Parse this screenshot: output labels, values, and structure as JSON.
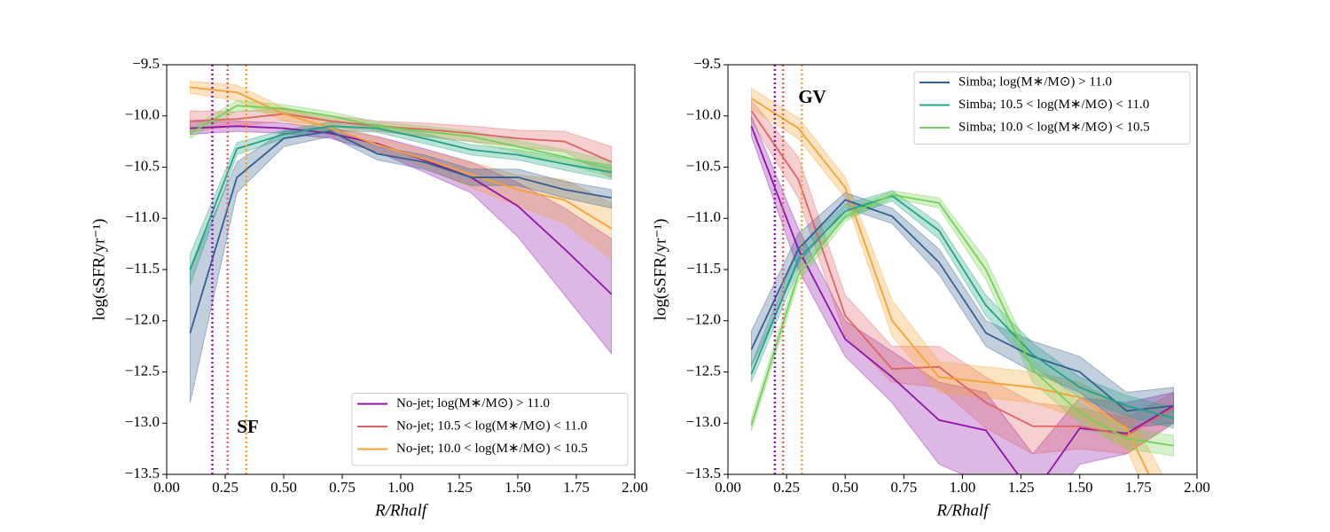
{
  "chart_data": [
    {
      "type": "line",
      "xlabel": "R/Rhalf",
      "ylabel": "log(sSFR/yr⁻¹)",
      "xlim": [
        0,
        2
      ],
      "ylim": [
        -13.5,
        -9.5
      ],
      "xticks": [
        {
          "value": 0,
          "label": "0.00"
        },
        {
          "value": 0.25,
          "label": "0.25"
        },
        {
          "value": 0.5,
          "label": "0.50"
        },
        {
          "value": 0.75,
          "label": "0.75"
        },
        {
          "value": 1,
          "label": "1.00"
        },
        {
          "value": 1.25,
          "label": "1.25"
        },
        {
          "value": 1.5,
          "label": "1.50"
        },
        {
          "value": 1.75,
          "label": "1.75"
        },
        {
          "value": 2,
          "label": "2.00"
        }
      ],
      "yticks": [
        {
          "value": -13.5,
          "label": "−13.5"
        },
        {
          "value": -13,
          "label": "−13.0"
        },
        {
          "value": -12.5,
          "label": "−12.5"
        },
        {
          "value": -12,
          "label": "−12.0"
        },
        {
          "value": -11.5,
          "label": "−11.5"
        },
        {
          "value": -11,
          "label": "−11.0"
        },
        {
          "value": -10.5,
          "label": "−10.5"
        },
        {
          "value": -10,
          "label": "−10.0"
        },
        {
          "value": -9.5,
          "label": "−9.5"
        }
      ],
      "legend": "lower right",
      "x": [
        0.1,
        0.3,
        0.5,
        0.7,
        0.9,
        1.1,
        1.3,
        1.5,
        1.7,
        1.9
      ],
      "series": [
        {
          "name": "No-jet; log(M∗/M⊙) > 11.0",
          "color": "#8f14a8",
          "values": [
            -10.12,
            -10.1,
            -10.12,
            -10.17,
            -10.27,
            -10.43,
            -10.6,
            -10.88,
            -11.3,
            -11.74
          ],
          "lower": [
            -10.18,
            -10.15,
            -10.17,
            -10.22,
            -10.35,
            -10.55,
            -10.75,
            -11.18,
            -11.75,
            -12.32
          ],
          "upper": [
            -10.06,
            -10.05,
            -10.07,
            -10.12,
            -10.2,
            -10.32,
            -10.45,
            -10.65,
            -10.9,
            -11.2
          ]
        },
        {
          "name": "No-jet; 10.5 < log(M∗/M⊙) < 11.0",
          "color": "#e06262",
          "values": [
            -10.05,
            -10.03,
            -9.98,
            -10.05,
            -10.1,
            -10.13,
            -10.17,
            -10.22,
            -10.25,
            -10.45
          ],
          "lower": [
            -10.15,
            -10.1,
            -10.05,
            -10.1,
            -10.15,
            -10.2,
            -10.25,
            -10.3,
            -10.35,
            -10.6
          ],
          "upper": [
            -9.95,
            -9.96,
            -9.92,
            -10.0,
            -10.05,
            -10.07,
            -10.1,
            -10.14,
            -10.15,
            -10.3
          ]
        },
        {
          "name": "No-jet; 10.0 < log(M∗/M⊙) < 10.5",
          "color": "#f5a234",
          "values": [
            -9.72,
            -9.77,
            -9.98,
            -10.12,
            -10.28,
            -10.42,
            -10.57,
            -10.72,
            -10.82,
            -11.1
          ],
          "lower": [
            -9.78,
            -9.85,
            -10.05,
            -10.18,
            -10.35,
            -10.5,
            -10.7,
            -10.88,
            -11.05,
            -11.4
          ],
          "upper": [
            -9.66,
            -9.7,
            -9.92,
            -10.06,
            -10.21,
            -10.34,
            -10.45,
            -10.58,
            -10.62,
            -10.85
          ]
        },
        {
          "color": "#36608f",
          "values": [
            -12.12,
            -10.6,
            -10.22,
            -10.15,
            -10.37,
            -10.45,
            -10.6,
            -10.6,
            -10.72,
            -10.8
          ],
          "lower": [
            -12.8,
            -10.75,
            -10.3,
            -10.2,
            -10.43,
            -10.52,
            -10.68,
            -10.68,
            -10.8,
            -10.9
          ],
          "upper": [
            -11.5,
            -10.45,
            -10.15,
            -10.1,
            -10.3,
            -10.38,
            -10.52,
            -10.52,
            -10.64,
            -10.72
          ]
        },
        {
          "color": "#22a384",
          "values": [
            -11.5,
            -10.32,
            -10.18,
            -10.1,
            -10.12,
            -10.22,
            -10.33,
            -10.38,
            -10.47,
            -10.55
          ],
          "lower": [
            -11.65,
            -10.38,
            -10.22,
            -10.14,
            -10.16,
            -10.27,
            -10.38,
            -10.43,
            -10.53,
            -10.62
          ],
          "upper": [
            -11.35,
            -10.26,
            -10.14,
            -10.06,
            -10.08,
            -10.17,
            -10.28,
            -10.33,
            -10.41,
            -10.48
          ]
        },
        {
          "color": "#74d055",
          "values": [
            -10.17,
            -9.9,
            -9.93,
            -10.0,
            -10.1,
            -10.15,
            -10.2,
            -10.3,
            -10.4,
            -10.52
          ],
          "lower": [
            -10.22,
            -9.95,
            -9.97,
            -10.04,
            -10.14,
            -10.2,
            -10.25,
            -10.36,
            -10.47,
            -10.6
          ],
          "upper": [
            -10.12,
            -9.85,
            -9.89,
            -9.96,
            -10.06,
            -10.1,
            -10.15,
            -10.24,
            -10.33,
            -10.44
          ]
        }
      ],
      "vlines": [
        {
          "x": 0.195,
          "color": "#8f14a8"
        },
        {
          "x": 0.26,
          "color": "#e06262"
        },
        {
          "x": 0.34,
          "color": "#f5a234"
        }
      ],
      "annotation": {
        "text": "SF",
        "x": 0.3,
        "y": -13.05
      }
    },
    {
      "type": "line",
      "xlabel": "R/Rhalf",
      "ylabel": "log(sSFR/yr⁻¹)",
      "xlim": [
        0,
        2
      ],
      "ylim": [
        -13.5,
        -9.5
      ],
      "xticks": [
        {
          "value": 0,
          "label": "0.00"
        },
        {
          "value": 0.25,
          "label": "0.25"
        },
        {
          "value": 0.5,
          "label": "0.50"
        },
        {
          "value": 0.75,
          "label": "0.75"
        },
        {
          "value": 1,
          "label": "1.00"
        },
        {
          "value": 1.25,
          "label": "1.25"
        },
        {
          "value": 1.5,
          "label": "1.50"
        },
        {
          "value": 1.75,
          "label": "1.75"
        },
        {
          "value": 2,
          "label": "2.00"
        }
      ],
      "yticks": [
        {
          "value": -13.5,
          "label": "−13.5"
        },
        {
          "value": -13,
          "label": "−13.0"
        },
        {
          "value": -12.5,
          "label": "−12.5"
        },
        {
          "value": -12,
          "label": "−12.0"
        },
        {
          "value": -11.5,
          "label": "−11.5"
        },
        {
          "value": -11,
          "label": "−11.0"
        },
        {
          "value": -10.5,
          "label": "−10.5"
        },
        {
          "value": -10,
          "label": "−10.0"
        },
        {
          "value": -9.5,
          "label": "−9.5"
        }
      ],
      "legend": "upper right",
      "x": [
        0.1,
        0.3,
        0.5,
        0.7,
        0.9,
        1.1,
        1.3,
        1.5,
        1.7,
        1.9
      ],
      "series": [
        {
          "color": "#8f14a8",
          "values": [
            -10.1,
            -11.3,
            -12.18,
            -12.55,
            -12.97,
            -13.07,
            -13.7,
            -13.05,
            -13.1,
            -12.83
          ],
          "lower": [
            -10.2,
            -11.5,
            -12.35,
            -12.8,
            -13.4,
            -13.6,
            -14.0,
            -13.4,
            -13.3,
            -13.0
          ],
          "upper": [
            -10.0,
            -11.1,
            -12.0,
            -12.3,
            -12.6,
            -12.7,
            -13.3,
            -12.75,
            -12.8,
            -12.7
          ]
        },
        {
          "color": "#e06262",
          "values": [
            -9.95,
            -10.62,
            -11.95,
            -12.47,
            -12.45,
            -12.8,
            -13.03,
            -13.03,
            -13.12,
            -12.85
          ],
          "lower": [
            -10.05,
            -10.8,
            -12.15,
            -12.6,
            -12.65,
            -13.05,
            -13.3,
            -13.25,
            -13.3,
            -13.0
          ],
          "upper": [
            -9.85,
            -10.4,
            -11.75,
            -12.25,
            -12.25,
            -12.55,
            -12.8,
            -12.85,
            -12.95,
            -12.7
          ]
        },
        {
          "color": "#f5a234",
          "values": [
            -9.83,
            -10.12,
            -10.7,
            -12.0,
            -12.55,
            -12.6,
            -12.65,
            -12.75,
            -13.05,
            -14.0
          ],
          "lower": [
            -9.93,
            -10.22,
            -10.8,
            -12.15,
            -12.7,
            -12.75,
            -12.8,
            -12.95,
            -13.25,
            -14.3
          ],
          "upper": [
            -9.73,
            -10.02,
            -10.6,
            -11.8,
            -12.4,
            -12.45,
            -12.5,
            -12.6,
            -12.85,
            -13.7
          ]
        },
        {
          "name": "Simba; log(M∗/M⊙) > 11.0",
          "color": "#36608f",
          "values": [
            -12.28,
            -11.3,
            -10.82,
            -10.98,
            -11.43,
            -12.12,
            -12.35,
            -12.5,
            -12.88,
            -12.83
          ],
          "lower": [
            -12.45,
            -11.45,
            -10.9,
            -11.05,
            -11.55,
            -12.25,
            -12.5,
            -12.7,
            -13.05,
            -13.0
          ],
          "upper": [
            -12.1,
            -11.15,
            -10.75,
            -10.9,
            -11.3,
            -12.0,
            -12.2,
            -12.35,
            -12.7,
            -12.65
          ]
        },
        {
          "name": "Simba; 10.5 < log(M∗/M⊙) < 11.0",
          "color": "#22a384",
          "values": [
            -12.52,
            -11.4,
            -10.93,
            -10.78,
            -11.12,
            -11.85,
            -12.33,
            -12.65,
            -12.83,
            -12.95
          ],
          "lower": [
            -12.6,
            -11.5,
            -11.0,
            -10.83,
            -11.2,
            -11.95,
            -12.45,
            -12.75,
            -12.93,
            -13.05
          ],
          "upper": [
            -12.42,
            -11.3,
            -10.86,
            -10.73,
            -11.05,
            -11.75,
            -12.22,
            -12.55,
            -12.73,
            -12.85
          ]
        },
        {
          "name": "Simba; 10.0 < log(M∗/M⊙) < 10.5",
          "color": "#74d055",
          "values": [
            -13.02,
            -11.55,
            -10.98,
            -10.77,
            -10.85,
            -11.5,
            -12.48,
            -12.9,
            -13.15,
            -13.22
          ],
          "lower": [
            -13.08,
            -11.62,
            -11.03,
            -10.8,
            -10.9,
            -11.6,
            -12.6,
            -13.0,
            -13.25,
            -13.32
          ],
          "upper": [
            -12.95,
            -11.48,
            -10.93,
            -10.73,
            -10.8,
            -11.4,
            -12.38,
            -12.8,
            -13.05,
            -13.12
          ]
        }
      ],
      "vlines": [
        {
          "x": 0.2,
          "color": "#8f14a8"
        },
        {
          "x": 0.235,
          "color": "#e06262"
        },
        {
          "x": 0.315,
          "color": "#f5a234"
        }
      ],
      "annotation": {
        "text": "GV",
        "x": 0.3,
        "y": -9.83
      }
    }
  ]
}
